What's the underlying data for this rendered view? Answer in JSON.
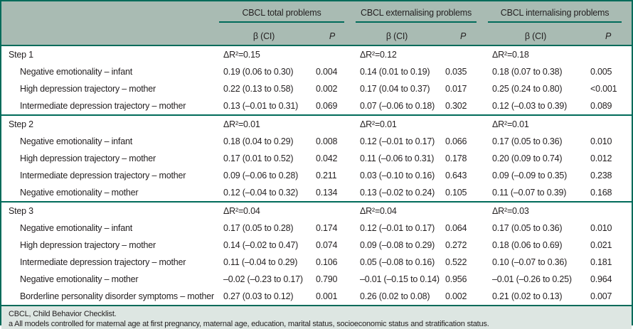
{
  "colors": {
    "accent_green": "#006b5a",
    "header_background": "#a9bbb3",
    "footer_background": "#dde6e2",
    "text": "#231f20",
    "body_background": "#ffffff"
  },
  "table": {
    "groups": [
      "CBCL total problems",
      "CBCL externalising problems",
      "CBCL internalising problems"
    ],
    "subheaders": {
      "beta": "β (CI)",
      "p": "P"
    },
    "sections": [
      {
        "label": "Step 1",
        "delta": [
          "ΔR²=0.15",
          "ΔR²=0.12",
          "ΔR²=0.18"
        ],
        "rows": [
          {
            "label": "Negative emotionality – infant",
            "cells": [
              "0.19 (0.06 to 0.30)",
              "0.004",
              "0.14 (0.01 to 0.19)",
              "0.035",
              "0.18 (0.07 to 0.38)",
              "0.005"
            ]
          },
          {
            "label": "High depression trajectory – mother",
            "cells": [
              "0.22 (0.13 to 0.58)",
              "0.002",
              "0.17 (0.04 to 0.37)",
              "0.017",
              "0.25 (0.24 to 0.80)",
              "<0.001"
            ]
          },
          {
            "label": "Intermediate depression trajectory – mother",
            "cells": [
              "0.13 (–0.01 to 0.31)",
              "0.069",
              "0.07 (–0.06 to 0.18)",
              "0.302",
              "0.12 (–0.03 to 0.39)",
              "0.089"
            ]
          }
        ]
      },
      {
        "label": "Step 2",
        "delta": [
          "ΔR²=0.01",
          "ΔR²=0.01",
          "ΔR²=0.01"
        ],
        "rows": [
          {
            "label": "Negative emotionality – infant",
            "cells": [
              "0.18 (0.04 to 0.29)",
              "0.008",
              "0.12 (–0.01 to 0.17)",
              "0.066",
              "0.17 (0.05 to 0.36)",
              "0.010"
            ]
          },
          {
            "label": "High depression trajectory – mother",
            "cells": [
              "0.17 (0.01 to 0.52)",
              "0.042",
              "0.11 (–0.06 to 0.31)",
              "0.178",
              "0.20 (0.09 to 0.74)",
              "0.012"
            ]
          },
          {
            "label": "Intermediate depression trajectory – mother",
            "cells": [
              "0.09 (–0.06 to 0.28)",
              "0.211",
              "0.03 (–0.10 to 0.16)",
              "0.643",
              "0.09 (–0.09 to 0.35)",
              "0.238"
            ]
          },
          {
            "label": "Negative emotionality – mother",
            "cells": [
              "0.12 (–0.04 to 0.32)",
              "0.134",
              "0.13 (–0.02 to 0.24)",
              "0.105",
              "0.11 (–0.07 to 0.39)",
              "0.168"
            ]
          }
        ]
      },
      {
        "label": "Step 3",
        "delta": [
          "ΔR²=0.04",
          "ΔR²=0.04",
          "ΔR²=0.03"
        ],
        "rows": [
          {
            "label": "Negative emotionality – infant",
            "cells": [
              "0.17 (0.05 to 0.28)",
              "0.174",
              "0.12 (–0.01 to 0.17)",
              "0.064",
              "0.17 (0.05 to 0.36)",
              "0.010"
            ]
          },
          {
            "label": "High depression trajectory – mother",
            "cells": [
              "0.14 (–0.02 to 0.47)",
              "0.074",
              "0.09 (–0.08 to 0.29)",
              "0.272",
              "0.18 (0.06 to 0.69)",
              "0.021"
            ]
          },
          {
            "label": "Intermediate depression trajectory – mother",
            "cells": [
              "0.11 (–0.04 to 0.29)",
              "0.106",
              "0.05 (–0.08 to 0.16)",
              "0.522",
              "0.10 (–0.07 to 0.36)",
              "0.181"
            ]
          },
          {
            "label": "Negative emotionality – mother",
            "cells": [
              "–0.02 (–0.23 to 0.17)",
              "0.790",
              "–0.01 (–0.15 to 0.14)",
              "0.956",
              "–0.01 (–0.26 to 0.25)",
              "0.964"
            ]
          },
          {
            "label": "Borderline personality disorder symptoms – mother",
            "cells": [
              "0.27 (0.03 to 0.12)",
              "0.001",
              "0.26 (0.02 to 0.08)",
              "0.002",
              "0.21 (0.02 to 0.13)",
              "0.007"
            ]
          }
        ]
      }
    ],
    "footnotes": [
      "CBCL, Child Behavior Checklist.",
      "a All models controlled for maternal age at first pregnancy, maternal age, education, marital status, socioeconomic status and stratification status."
    ]
  }
}
